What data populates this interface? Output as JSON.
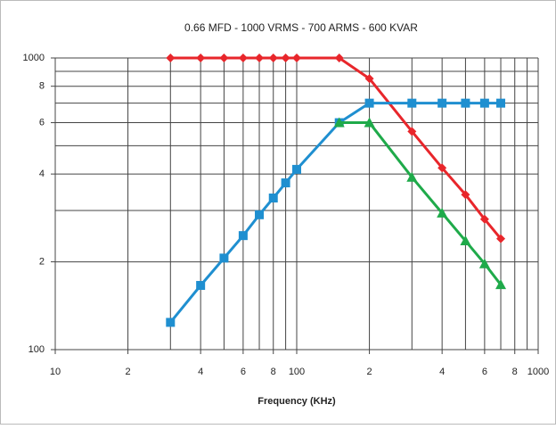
{
  "chart_data": {
    "type": "line",
    "title": "0.66 MFD - 1000 VRMS - 700 ARMS - 600 KVAR",
    "xlabel": "Frequency (KHz)",
    "xscale": "log",
    "yscale": "log",
    "xlim": [
      10,
      1000
    ],
    "ylim": [
      100,
      1000
    ],
    "xticks": [
      10,
      {
        "value": 20,
        "label": "2"
      },
      {
        "value": 40,
        "label": "4"
      },
      {
        "value": 60,
        "label": "6"
      },
      {
        "value": 80,
        "label": "8"
      },
      100,
      {
        "value": 200,
        "label": "2"
      },
      {
        "value": 400,
        "label": "4"
      },
      {
        "value": 600,
        "label": "6"
      },
      {
        "value": 800,
        "label": "8"
      },
      1000
    ],
    "yticks": [
      100,
      {
        "value": 200,
        "label": "2"
      },
      {
        "value": 400,
        "label": "4"
      },
      {
        "value": 600,
        "label": "6"
      },
      {
        "value": 800,
        "label": "8"
      },
      1000
    ],
    "xgrid": [
      10,
      20,
      30,
      40,
      50,
      60,
      70,
      80,
      90,
      100,
      200,
      300,
      400,
      500,
      600,
      700,
      800,
      900,
      1000
    ],
    "ygrid": [
      100,
      200,
      300,
      400,
      500,
      600,
      700,
      800,
      900,
      1000
    ],
    "grid": true,
    "series": [
      {
        "color": "#e8262b",
        "marker": "diamond",
        "x": [
          30,
          40,
          50,
          60,
          70,
          80,
          90,
          100,
          150,
          200,
          300,
          400,
          500,
          600,
          700
        ],
        "values": [
          1000,
          1000,
          1000,
          1000,
          1000,
          1000,
          1000,
          1000,
          1000,
          850,
          560,
          420,
          340,
          280,
          240
        ]
      },
      {
        "color": "#1f8fd0",
        "marker": "square",
        "x": [
          30,
          40,
          50,
          60,
          70,
          80,
          90,
          100,
          150,
          200,
          300,
          400,
          500,
          600,
          700
        ],
        "values": [
          124,
          166,
          206,
          246,
          290,
          331,
          373,
          415,
          600,
          700,
          700,
          700,
          700,
          700,
          700
        ]
      },
      {
        "color": "#1faa4a",
        "marker": "triangle",
        "x": [
          150,
          200,
          300,
          400,
          500,
          600,
          700
        ],
        "values": [
          600,
          600,
          390,
          294,
          236,
          197,
          167
        ]
      }
    ]
  }
}
